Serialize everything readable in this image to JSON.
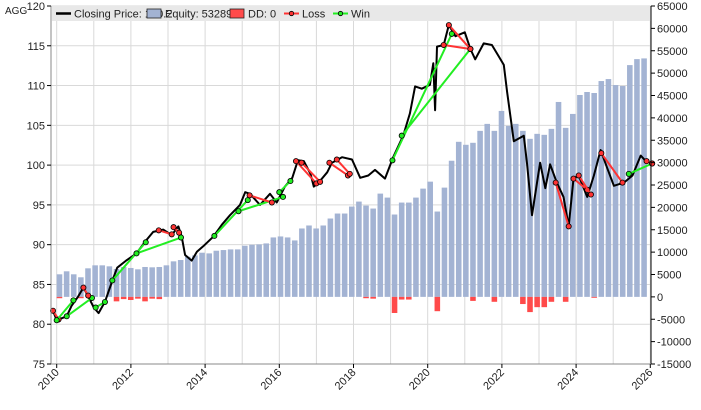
{
  "chart_data": {
    "type": "line",
    "title": "AGG",
    "legend": {
      "placement": "top",
      "items": [
        {
          "key": "price",
          "label": "Closing Price: 100.2",
          "color": "#000000",
          "kind": "line"
        },
        {
          "key": "equity",
          "label": "Equity: 53289",
          "color": "#a3b3d3",
          "kind": "box"
        },
        {
          "key": "dd",
          "label": "DD: 0",
          "color": "#ff4a4a",
          "kind": "box"
        },
        {
          "key": "loss",
          "label": "Loss",
          "color": "#ff3333",
          "kind": "marker"
        },
        {
          "key": "win",
          "label": "Win",
          "color": "#22ee22",
          "kind": "marker"
        }
      ]
    },
    "x_axis": {
      "range": [
        2010,
        2026
      ],
      "ticks": [
        "2010",
        "2012",
        "2014",
        "2016",
        "2018",
        "2020",
        "2022",
        "2024",
        "2026"
      ],
      "grid": true
    },
    "y_left": {
      "range": [
        75,
        120
      ],
      "ticks": [
        "75",
        "80",
        "85",
        "90",
        "95",
        "100",
        "105",
        "110",
        "115",
        "120"
      ],
      "grid": true
    },
    "y_right": {
      "range": [
        -15000,
        65000
      ],
      "ticks": [
        "-15000",
        "-10000",
        "-5000",
        "0",
        "5000",
        "10000",
        "15000",
        "20000",
        "25000",
        "30000",
        "35000",
        "40000",
        "45000",
        "50000",
        "55000",
        "60000",
        "65000"
      ]
    },
    "price": [
      [
        2009.9,
        81.7
      ],
      [
        2010.0,
        80.5
      ],
      [
        2010.27,
        81.0
      ],
      [
        2010.4,
        82.3
      ],
      [
        2010.58,
        83.5
      ],
      [
        2010.72,
        84.6
      ],
      [
        2010.85,
        83.5
      ],
      [
        2011.0,
        82.1
      ],
      [
        2011.13,
        81.4
      ],
      [
        2011.3,
        82.8
      ],
      [
        2011.5,
        85.5
      ],
      [
        2011.63,
        87.1
      ],
      [
        2011.87,
        88.0
      ],
      [
        2012.15,
        88.9
      ],
      [
        2012.37,
        90.3
      ],
      [
        2012.6,
        91.6
      ],
      [
        2012.87,
        91.9
      ],
      [
        2013.1,
        91.2
      ],
      [
        2013.28,
        92.3
      ],
      [
        2013.37,
        91.0
      ],
      [
        2013.46,
        88.7
      ],
      [
        2013.64,
        88.0
      ],
      [
        2013.78,
        89.1
      ],
      [
        2013.95,
        89.8
      ],
      [
        2014.22,
        91.0
      ],
      [
        2014.45,
        92.5
      ],
      [
        2014.67,
        93.7
      ],
      [
        2014.94,
        95.0
      ],
      [
        2015.08,
        96.6
      ],
      [
        2015.21,
        96.4
      ],
      [
        2015.48,
        95.0
      ],
      [
        2015.75,
        96.4
      ],
      [
        2015.93,
        95.3
      ],
      [
        2016.15,
        97.3
      ],
      [
        2016.35,
        98.4
      ],
      [
        2016.5,
        100.6
      ],
      [
        2016.66,
        100.5
      ],
      [
        2016.84,
        98.9
      ],
      [
        2016.93,
        97.3
      ],
      [
        2017.06,
        97.8
      ],
      [
        2017.29,
        99.1
      ],
      [
        2017.42,
        100.3
      ],
      [
        2017.69,
        101.0
      ],
      [
        2017.96,
        100.7
      ],
      [
        2018.18,
        98.4
      ],
      [
        2018.4,
        98.7
      ],
      [
        2018.58,
        99.4
      ],
      [
        2018.85,
        98.3
      ],
      [
        2019.07,
        101.0
      ],
      [
        2019.34,
        103.7
      ],
      [
        2019.52,
        106.5
      ],
      [
        2019.66,
        109.9
      ],
      [
        2019.84,
        109.6
      ],
      [
        2020.06,
        110.1
      ],
      [
        2020.15,
        112.8
      ],
      [
        2020.2,
        106.9
      ],
      [
        2020.25,
        114.9
      ],
      [
        2020.43,
        115.1
      ],
      [
        2020.57,
        117.6
      ],
      [
        2020.75,
        116.2
      ],
      [
        2021.0,
        116.7
      ],
      [
        2021.15,
        114.6
      ],
      [
        2021.28,
        113.3
      ],
      [
        2021.51,
        115.3
      ],
      [
        2021.73,
        115.1
      ],
      [
        2021.91,
        113.7
      ],
      [
        2022.05,
        112.6
      ],
      [
        2022.14,
        109.2
      ],
      [
        2022.32,
        103.0
      ],
      [
        2022.59,
        103.7
      ],
      [
        2022.68,
        100.1
      ],
      [
        2022.81,
        93.7
      ],
      [
        2023.03,
        100.3
      ],
      [
        2023.17,
        97.1
      ],
      [
        2023.3,
        100.1
      ],
      [
        2023.48,
        97.8
      ],
      [
        2023.66,
        96.0
      ],
      [
        2023.8,
        92.3
      ],
      [
        2023.93,
        98.3
      ],
      [
        2024.07,
        98.7
      ],
      [
        2024.3,
        96.0
      ],
      [
        2024.48,
        98.7
      ],
      [
        2024.66,
        101.9
      ],
      [
        2024.84,
        99.6
      ],
      [
        2025.02,
        97.4
      ],
      [
        2025.29,
        97.8
      ],
      [
        2025.52,
        98.7
      ],
      [
        2025.74,
        101.2
      ],
      [
        2025.88,
        100.5
      ],
      [
        2026.05,
        100.2
      ]
    ],
    "equity": [
      5046,
      5713,
      5046,
      4378,
      6381,
      7049,
      7049,
      6826,
      6233,
      6678,
      6455,
      6159,
      6678,
      6604,
      6678,
      7049,
      7939,
      8236,
      8978,
      9275,
      9869,
      9720,
      10314,
      10462,
      10611,
      10611,
      11427,
      11649,
      11724,
      11946,
      13282,
      13504,
      13282,
      12614,
      15285,
      15953,
      15285,
      15953,
      17511,
      18624,
      18624,
      20182,
      21295,
      20405,
      19737,
      23076,
      22186,
      18402,
      21073,
      21073,
      22186,
      24189,
      25747,
      19069,
      24412,
      30422,
      34651,
      33984,
      34429,
      37100,
      38658,
      37100,
      41552,
      38213,
      38658,
      37100,
      35319,
      36432,
      36210,
      37545,
      43555,
      37768,
      40884,
      45114,
      45781,
      45559,
      48230,
      48675,
      47340,
      47117,
      51792,
      53127,
      53289
    ],
    "drawdown": [
      -300,
      0,
      0,
      -300,
      0,
      0,
      0,
      0,
      -1000,
      -500,
      -700,
      -400,
      -1000,
      -400,
      -500,
      0,
      0,
      0,
      0,
      0,
      0,
      0,
      0,
      0,
      0,
      0,
      0,
      0,
      0,
      0,
      0,
      0,
      0,
      0,
      0,
      0,
      0,
      0,
      0,
      0,
      0,
      0,
      0,
      -300,
      -400,
      0,
      0,
      -3600,
      -600,
      -600,
      0,
      0,
      0,
      -3200,
      0,
      0,
      0,
      0,
      -900,
      0,
      0,
      -1100,
      0,
      0,
      0,
      -1600,
      -3400,
      -2300,
      -2300,
      -1100,
      0,
      -1100,
      0,
      0,
      0,
      -200,
      0,
      0,
      0,
      0,
      0,
      0,
      0
    ],
    "trades": [
      {
        "result": "loss",
        "entry": [
          2009.9,
          81.7
        ],
        "exit": [
          2010.05,
          80.6
        ]
      },
      {
        "result": "win",
        "entry": [
          2010.0,
          80.5
        ],
        "exit": [
          2010.45,
          83.0
        ]
      },
      {
        "result": "win",
        "entry": [
          2010.27,
          81.0
        ],
        "exit": [
          2010.95,
          83.3
        ]
      },
      {
        "result": "loss",
        "entry": [
          2010.72,
          84.6
        ],
        "exit": [
          2010.85,
          83.6
        ]
      },
      {
        "result": "win",
        "entry": [
          2011.05,
          82.1
        ],
        "exit": [
          2011.3,
          82.8
        ]
      },
      {
        "result": "win",
        "entry": [
          2011.5,
          85.5
        ],
        "exit": [
          2012.4,
          90.3
        ]
      },
      {
        "result": "win",
        "entry": [
          2012.15,
          88.9
        ],
        "exit": [
          2013.35,
          90.9
        ]
      },
      {
        "result": "loss",
        "entry": [
          2012.75,
          91.8
        ],
        "exit": [
          2013.1,
          91.3
        ]
      },
      {
        "result": "loss",
        "entry": [
          2013.15,
          92.2
        ],
        "exit": [
          2013.3,
          91.5
        ]
      },
      {
        "result": "win",
        "entry": [
          2014.25,
          91.1
        ],
        "exit": [
          2015.15,
          95.6
        ]
      },
      {
        "result": "win",
        "entry": [
          2014.9,
          94.2
        ],
        "exit": [
          2016.1,
          96.0
        ]
      },
      {
        "result": "loss",
        "entry": [
          2015.2,
          96.2
        ],
        "exit": [
          2015.8,
          95.3
        ]
      },
      {
        "result": "win",
        "entry": [
          2016.0,
          96.6
        ],
        "exit": [
          2016.3,
          98.0
        ]
      },
      {
        "result": "loss",
        "entry": [
          2016.45,
          100.5
        ],
        "exit": [
          2017.0,
          97.7
        ]
      },
      {
        "result": "loss",
        "entry": [
          2016.6,
          100.3
        ],
        "exit": [
          2017.1,
          97.9
        ]
      },
      {
        "result": "loss",
        "entry": [
          2017.35,
          100.3
        ],
        "exit": [
          2017.85,
          98.7
        ]
      },
      {
        "result": "loss",
        "entry": [
          2017.55,
          100.7
        ],
        "exit": [
          2017.9,
          98.9
        ]
      },
      {
        "result": "win",
        "entry": [
          2019.05,
          100.6
        ],
        "exit": [
          2020.65,
          116.5
        ]
      },
      {
        "result": "win",
        "entry": [
          2019.3,
          103.7
        ],
        "exit": [
          2021.15,
          114.6
        ]
      },
      {
        "result": "loss",
        "entry": [
          2020.57,
          117.6
        ],
        "exit": [
          2021.15,
          114.6
        ]
      },
      {
        "result": "loss",
        "entry": [
          2020.43,
          115.1
        ],
        "exit": [
          2021.15,
          114.6
        ]
      },
      {
        "result": "loss",
        "entry": [
          2023.45,
          97.8
        ],
        "exit": [
          2023.8,
          92.3
        ]
      },
      {
        "result": "loss",
        "entry": [
          2023.93,
          98.3
        ],
        "exit": [
          2024.3,
          96.9
        ]
      },
      {
        "result": "loss",
        "entry": [
          2024.07,
          98.7
        ],
        "exit": [
          2024.4,
          96.3
        ]
      },
      {
        "result": "loss",
        "entry": [
          2024.68,
          101.5
        ],
        "exit": [
          2025.25,
          97.8
        ]
      },
      {
        "result": "win",
        "entry": [
          2025.42,
          98.9
        ],
        "exit": [
          2026.05,
          100.2
        ]
      },
      {
        "result": "loss",
        "entry": [
          2025.9,
          100.5
        ],
        "exit": [
          2026.05,
          100.2
        ]
      }
    ]
  }
}
